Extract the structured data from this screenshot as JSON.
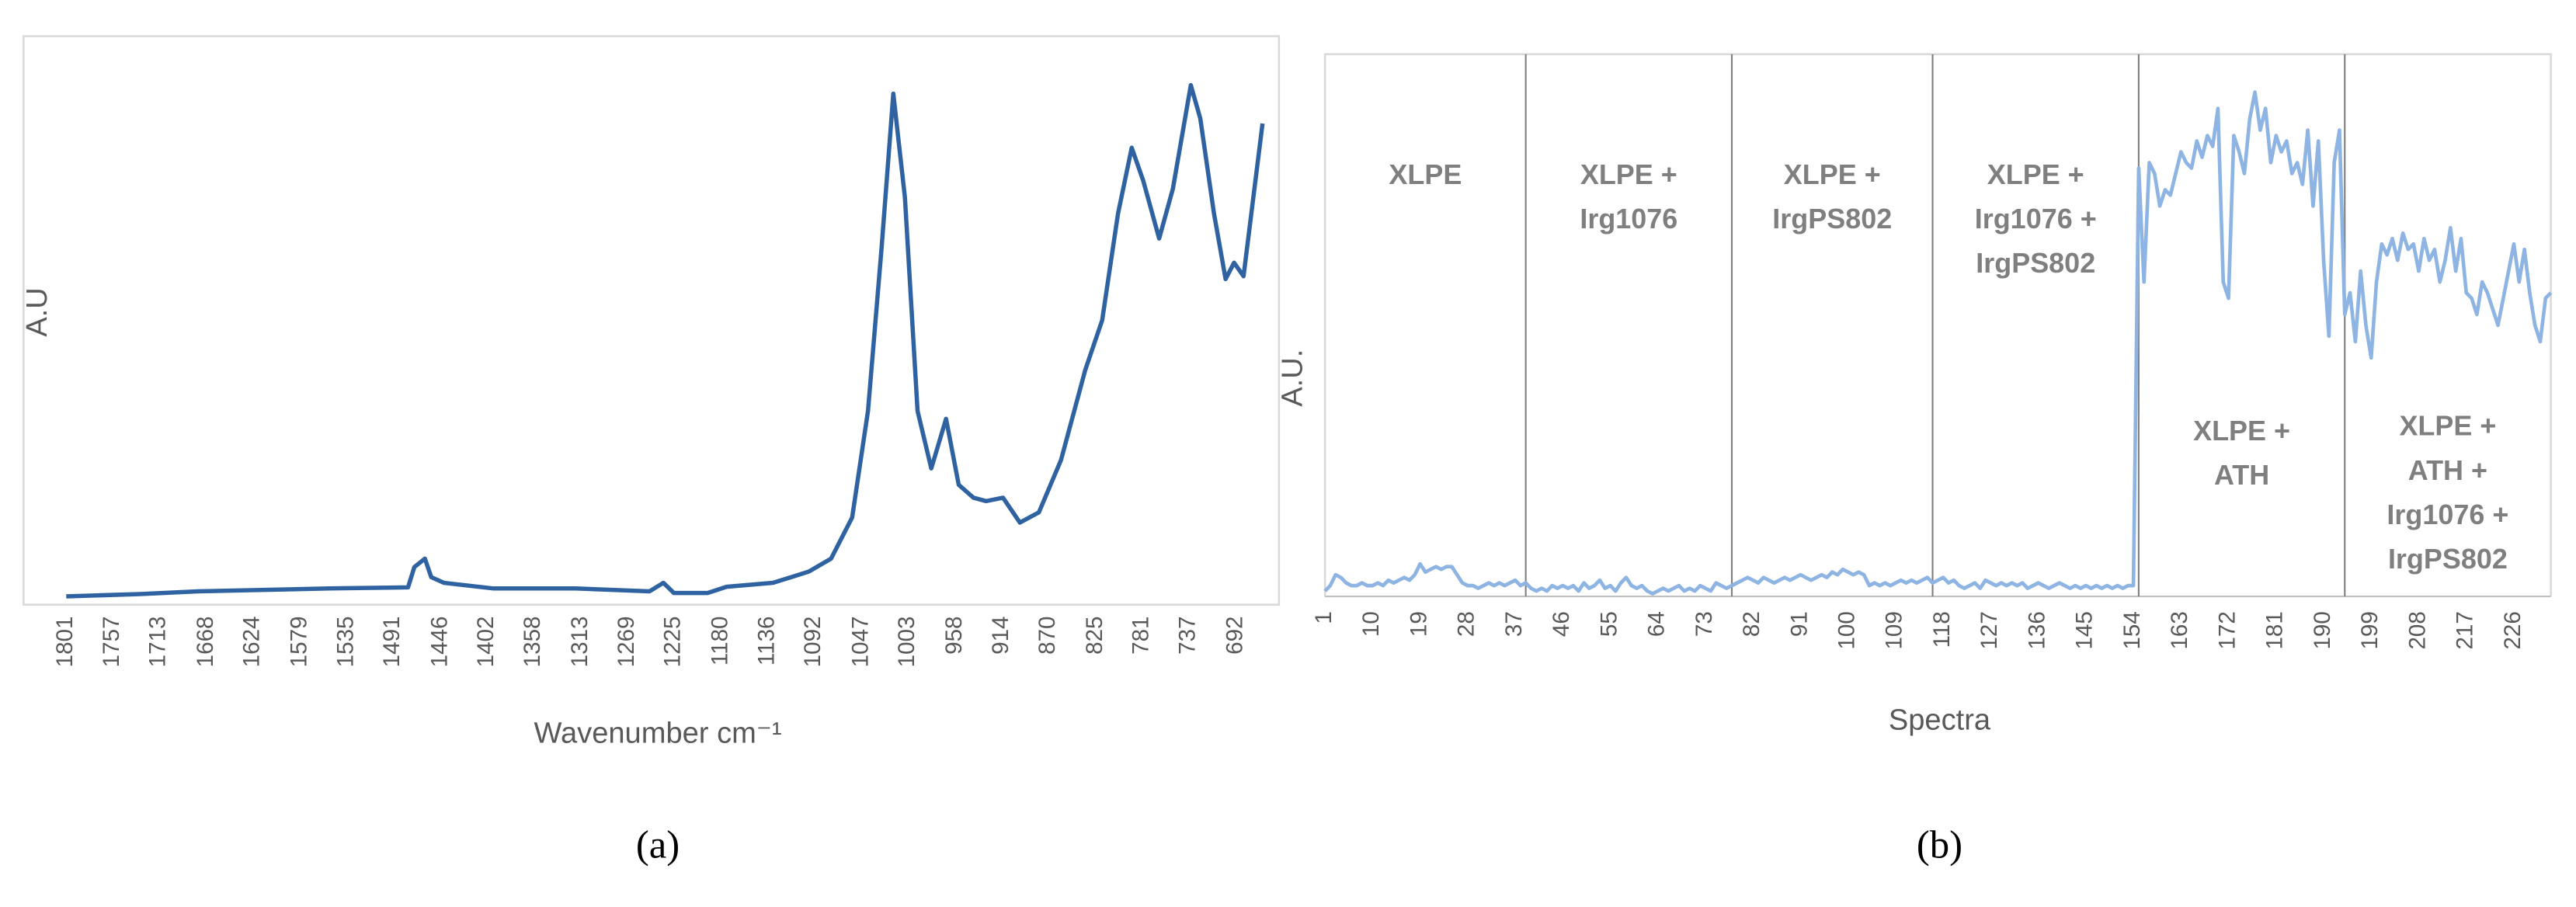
{
  "chart_data": [
    {
      "type": "line",
      "caption": "(a)",
      "x_label": "Wavenumber cm⁻¹",
      "y_label": "A.U",
      "color": "#2f62a0",
      "xlim": [
        1801,
        667
      ],
      "ylim": [
        0,
        1
      ],
      "xticks": [
        1801,
        1757,
        1713,
        1668,
        1624,
        1579,
        1535,
        1491,
        1446,
        1402,
        1358,
        1313,
        1269,
        1225,
        1180,
        1136,
        1092,
        1047,
        1003,
        958,
        914,
        870,
        825,
        781,
        737,
        692
      ],
      "x": [
        1801,
        1731,
        1676,
        1552,
        1477,
        1471,
        1461,
        1455,
        1443,
        1396,
        1318,
        1248,
        1235,
        1225,
        1193,
        1175,
        1131,
        1097,
        1076,
        1056,
        1041,
        1028,
        1017,
        1006,
        994,
        981,
        967,
        955,
        941,
        929,
        913,
        897,
        879,
        858,
        835,
        819,
        804,
        791,
        780,
        765,
        752,
        735,
        726,
        713,
        702,
        694,
        685,
        667
      ],
      "values": [
        0.006,
        0.01,
        0.015,
        0.02,
        0.022,
        0.058,
        0.073,
        0.04,
        0.03,
        0.02,
        0.02,
        0.015,
        0.03,
        0.012,
        0.012,
        0.023,
        0.03,
        0.05,
        0.073,
        0.146,
        0.335,
        0.627,
        0.898,
        0.714,
        0.335,
        0.233,
        0.321,
        0.204,
        0.181,
        0.175,
        0.181,
        0.137,
        0.155,
        0.248,
        0.408,
        0.496,
        0.685,
        0.802,
        0.743,
        0.641,
        0.729,
        0.913,
        0.854,
        0.685,
        0.569,
        0.598,
        0.574,
        0.845
      ]
    },
    {
      "type": "line",
      "caption": "(b)",
      "x_label": "Spectra",
      "y_label": "A.U.",
      "color": "#8eb4e3",
      "xlim": [
        1,
        233
      ],
      "ylim": [
        0,
        1
      ],
      "xticks": [
        1,
        10,
        19,
        28,
        37,
        46,
        55,
        64,
        73,
        82,
        91,
        100,
        109,
        118,
        127,
        136,
        145,
        154,
        163,
        172,
        181,
        190,
        199,
        208,
        217,
        226
      ],
      "sections": [
        {
          "lines": [
            "XLPE"
          ],
          "start": 1,
          "end": 39
        },
        {
          "lines": [
            "XLPE +",
            "Irg1076"
          ],
          "start": 39,
          "end": 78
        },
        {
          "lines": [
            "XLPE +",
            "IrgPS802"
          ],
          "start": 78,
          "end": 116
        },
        {
          "lines": [
            "XLPE +",
            "Irg1076 +",
            "IrgPS802"
          ],
          "start": 116,
          "end": 155
        },
        {
          "lines": [
            "XLPE +",
            "ATH"
          ],
          "start": 155,
          "end": 194
        },
        {
          "lines": [
            "XLPE +",
            "ATH +",
            "Irg1076 +",
            "IrgPS802"
          ],
          "start": 194,
          "end": 233
        }
      ],
      "x": [
        1,
        2,
        3,
        4,
        5,
        6,
        7,
        8,
        9,
        10,
        11,
        12,
        13,
        14,
        15,
        16,
        17,
        18,
        19,
        20,
        21,
        22,
        23,
        24,
        25,
        26,
        27,
        28,
        29,
        30,
        31,
        32,
        33,
        34,
        35,
        36,
        37,
        38,
        39,
        40,
        41,
        42,
        43,
        44,
        45,
        46,
        47,
        48,
        49,
        50,
        51,
        52,
        53,
        54,
        55,
        56,
        57,
        58,
        59,
        60,
        61,
        62,
        63,
        64,
        65,
        66,
        67,
        68,
        69,
        70,
        71,
        72,
        73,
        74,
        75,
        76,
        77,
        78,
        79,
        80,
        81,
        82,
        83,
        84,
        85,
        86,
        87,
        88,
        89,
        90,
        91,
        92,
        93,
        94,
        95,
        96,
        97,
        98,
        99,
        100,
        101,
        102,
        103,
        104,
        105,
        106,
        107,
        108,
        109,
        110,
        111,
        112,
        113,
        114,
        115,
        116,
        117,
        118,
        119,
        120,
        121,
        122,
        123,
        124,
        125,
        126,
        127,
        128,
        129,
        130,
        131,
        132,
        133,
        134,
        135,
        136,
        137,
        138,
        139,
        140,
        141,
        142,
        143,
        144,
        145,
        146,
        147,
        148,
        149,
        150,
        151,
        152,
        153,
        154,
        155,
        156,
        157,
        158,
        159,
        160,
        161,
        162,
        163,
        164,
        165,
        166,
        167,
        168,
        169,
        170,
        171,
        172,
        173,
        174,
        175,
        176,
        177,
        178,
        179,
        180,
        181,
        182,
        183,
        184,
        185,
        186,
        187,
        188,
        189,
        190,
        191,
        192,
        193,
        194,
        195,
        196,
        197,
        198,
        199,
        200,
        201,
        202,
        203,
        204,
        205,
        206,
        207,
        208,
        209,
        210,
        211,
        212,
        213,
        214,
        215,
        216,
        217,
        218,
        219,
        220,
        221,
        222,
        223,
        224,
        225,
        226,
        227,
        228,
        229,
        230,
        231,
        232,
        233
      ],
      "values": [
        0.01,
        0.02,
        0.04,
        0.035,
        0.025,
        0.02,
        0.02,
        0.025,
        0.02,
        0.02,
        0.025,
        0.02,
        0.03,
        0.025,
        0.03,
        0.035,
        0.03,
        0.04,
        0.06,
        0.045,
        0.05,
        0.055,
        0.05,
        0.055,
        0.055,
        0.04,
        0.025,
        0.02,
        0.02,
        0.015,
        0.02,
        0.025,
        0.02,
        0.025,
        0.02,
        0.025,
        0.03,
        0.02,
        0.025,
        0.015,
        0.01,
        0.015,
        0.01,
        0.02,
        0.015,
        0.02,
        0.015,
        0.02,
        0.01,
        0.025,
        0.015,
        0.02,
        0.03,
        0.015,
        0.02,
        0.01,
        0.025,
        0.035,
        0.02,
        0.015,
        0.02,
        0.01,
        0.005,
        0.01,
        0.015,
        0.01,
        0.015,
        0.02,
        0.01,
        0.015,
        0.01,
        0.02,
        0.015,
        0.01,
        0.025,
        0.02,
        0.015,
        0.02,
        0.025,
        0.03,
        0.035,
        0.03,
        0.025,
        0.035,
        0.03,
        0.025,
        0.03,
        0.035,
        0.03,
        0.035,
        0.04,
        0.035,
        0.03,
        0.035,
        0.04,
        0.035,
        0.045,
        0.04,
        0.05,
        0.045,
        0.04,
        0.045,
        0.04,
        0.02,
        0.025,
        0.02,
        0.025,
        0.02,
        0.025,
        0.03,
        0.025,
        0.03,
        0.025,
        0.03,
        0.035,
        0.025,
        0.03,
        0.035,
        0.025,
        0.03,
        0.02,
        0.015,
        0.02,
        0.025,
        0.015,
        0.03,
        0.025,
        0.02,
        0.025,
        0.02,
        0.025,
        0.02,
        0.025,
        0.015,
        0.02,
        0.025,
        0.02,
        0.015,
        0.02,
        0.025,
        0.02,
        0.015,
        0.02,
        0.015,
        0.02,
        0.015,
        0.02,
        0.015,
        0.02,
        0.015,
        0.02,
        0.015,
        0.02,
        0.02,
        0.79,
        0.58,
        0.8,
        0.78,
        0.72,
        0.75,
        0.74,
        0.78,
        0.82,
        0.8,
        0.79,
        0.84,
        0.81,
        0.85,
        0.83,
        0.9,
        0.58,
        0.55,
        0.85,
        0.82,
        0.78,
        0.88,
        0.93,
        0.86,
        0.9,
        0.8,
        0.85,
        0.82,
        0.84,
        0.78,
        0.8,
        0.76,
        0.86,
        0.72,
        0.84,
        0.62,
        0.48,
        0.8,
        0.86,
        0.52,
        0.56,
        0.47,
        0.6,
        0.5,
        0.44,
        0.58,
        0.65,
        0.63,
        0.66,
        0.62,
        0.67,
        0.64,
        0.65,
        0.6,
        0.66,
        0.62,
        0.64,
        0.58,
        0.62,
        0.68,
        0.6,
        0.66,
        0.56,
        0.55,
        0.52,
        0.58,
        0.56,
        0.53,
        0.5,
        0.55,
        0.6,
        0.65,
        0.58,
        0.64,
        0.56,
        0.5,
        0.47,
        0.55,
        0.56
      ]
    }
  ]
}
